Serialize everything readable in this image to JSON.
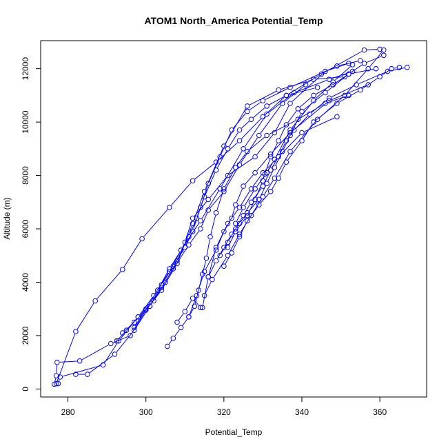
{
  "chart_data": {
    "type": "line",
    "title": "ATOM1 North_America Potential_Temp",
    "xlabel": "Potential_Temp",
    "ylabel": "Altitude (m)",
    "xlim": [
      273,
      372
    ],
    "ylim": [
      -300,
      13050
    ],
    "xticks": [
      280,
      300,
      320,
      340,
      360
    ],
    "yticks": [
      0,
      2000,
      4000,
      6000,
      8000,
      10000,
      12000
    ],
    "grid": false,
    "legend": "none",
    "color": "#0000ff",
    "marker": "open-circle",
    "series": [
      {
        "x": [
          276.5,
          277.0,
          277.2,
          283,
          291,
          296,
          300,
          304,
          308,
          312,
          315,
          320,
          326,
          334,
          343,
          351
        ],
        "y": [
          180,
          500,
          1000,
          1050,
          1700,
          2000,
          2950,
          3700,
          4700,
          6200,
          7400,
          9100,
          10600,
          11200,
          11600,
          11700
        ]
      },
      {
        "x": [
          277.5,
          278,
          289,
          293,
          298,
          302,
          306,
          309,
          314,
          319,
          325,
          331,
          338,
          347,
          353
        ],
        "y": [
          200,
          450,
          900,
          1800,
          2700,
          3500,
          4400,
          5200,
          6300,
          7500,
          9000,
          10300,
          11100,
          11600,
          11900
        ]
      },
      {
        "x": [
          277,
          282,
          287,
          294,
          299,
          306,
          312,
          318,
          324,
          330,
          336,
          345,
          356,
          360
        ],
        "y": [
          200,
          2150,
          3300,
          4480,
          5630,
          6800,
          7800,
          8500,
          9300,
          10200,
          11000,
          11800,
          12700,
          12730
        ]
      },
      {
        "x": [
          282,
          285,
          292,
          297,
          301,
          304,
          307,
          311,
          314,
          316,
          320,
          324,
          329,
          335,
          341
        ],
        "y": [
          550,
          550,
          1300,
          2200,
          3100,
          3800,
          4500,
          5400,
          6000,
          6700,
          7400,
          8400,
          9500,
          10700,
          11400
        ]
      },
      {
        "x": [
          292.5,
          295,
          298,
          302,
          305,
          308,
          310,
          312,
          316,
          321,
          328,
          333,
          337,
          346,
          352
        ],
        "y": [
          1800,
          2200,
          2700,
          3300,
          4000,
          4800,
          5500,
          6400,
          7100,
          8000,
          8700,
          9600,
          10700,
          11900,
          12200
        ]
      },
      {
        "x": [
          294,
          297,
          301,
          304,
          307,
          310,
          312,
          314,
          316,
          319,
          322,
          326,
          330,
          337,
          349,
          355
        ],
        "y": [
          2100,
          2500,
          3100,
          3900,
          4600,
          5300,
          5900,
          6800,
          7700,
          8700,
          9700,
          10400,
          10800,
          11300,
          12100,
          12300
        ]
      },
      {
        "x": [
          297,
          300,
          303,
          306,
          309,
          311,
          313,
          315,
          318,
          321,
          324,
          327,
          331,
          336,
          344
        ],
        "y": [
          2300,
          3000,
          3700,
          4500,
          5200,
          5700,
          6400,
          7200,
          8200,
          9000,
          9700,
          10100,
          10600,
          11000,
          11300
        ]
      },
      {
        "x": [
          305.5,
          307,
          309,
          311,
          312.5,
          313.5,
          314.5,
          315.5,
          316.5,
          318,
          320,
          323,
          326,
          331,
          339,
          346,
          352
        ],
        "y": [
          1600,
          1900,
          2300,
          2700,
          3100,
          3700,
          4300,
          4900,
          5700,
          6600,
          7500,
          8300,
          8900,
          9500,
          10100,
          10700,
          11000
        ]
      },
      {
        "x": [
          308,
          310,
          312,
          314,
          314.5,
          316,
          318,
          321,
          324,
          327,
          330,
          334,
          340,
          349
        ],
        "y": [
          2500,
          2900,
          3400,
          3050,
          3050,
          4200,
          5300,
          6200,
          6800,
          7500,
          8100,
          8700,
          9600,
          10200
        ]
      },
      {
        "x": [
          311,
          313,
          315,
          318,
          320,
          322,
          323,
          325,
          328,
          332,
          337,
          347,
          357
        ],
        "y": [
          2700,
          3500,
          4400,
          5200,
          5900,
          6400,
          6900,
          7600,
          8100,
          8800,
          9600,
          10800,
          11400
        ]
      },
      {
        "x": [
          316,
          318,
          320,
          322,
          324,
          326,
          329,
          331,
          333,
          335,
          337,
          340,
          346,
          352,
          359
        ],
        "y": [
          4200,
          4800,
          5300,
          5800,
          6200,
          6600,
          7100,
          7700,
          8300,
          8900,
          9500,
          10400,
          11100,
          11800,
          12000
        ]
      },
      {
        "x": [
          319,
          321,
          323,
          325,
          327,
          330,
          332,
          334,
          336,
          338,
          342,
          347,
          354,
          362,
          367
        ],
        "y": [
          5000,
          5500,
          6000,
          6500,
          7000,
          7600,
          8200,
          8700,
          9300,
          9700,
          10300,
          10900,
          11400,
          11900,
          12050
        ]
      },
      {
        "x": [
          321,
          323,
          326,
          328,
          330,
          330.5,
          332,
          334,
          336,
          339,
          343,
          348,
          352,
          356,
          361
        ],
        "y": [
          5300,
          5900,
          6500,
          7100,
          7800,
          8050,
          8700,
          9300,
          9900,
          10500,
          11000,
          11400,
          11800,
          12200,
          12500
        ]
      },
      {
        "x": [
          320,
          322,
          324,
          326,
          329,
          332,
          334,
          336,
          340,
          343,
          349,
          355,
          360,
          363,
          365
        ],
        "y": [
          4600,
          5100,
          5700,
          6300,
          6900,
          7400,
          7900,
          8500,
          9300,
          10000,
          10700,
          11200,
          11700,
          12000,
          12050
        ]
      },
      {
        "x": [
          323,
          325,
          328,
          331,
          333,
          337,
          343,
          348,
          353
        ],
        "y": [
          6200,
          6800,
          7500,
          8100,
          8600,
          9700,
          10800,
          11500,
          12150
        ]
      },
      {
        "x": [
          315,
          317,
          321,
          324,
          327,
          330,
          333,
          337,
          344,
          351,
          357,
          361
        ],
        "y": [
          3500,
          4100,
          5000,
          5800,
          6500,
          7200,
          7900,
          8900,
          10100,
          11000,
          12000,
          12700
        ]
      }
    ]
  }
}
